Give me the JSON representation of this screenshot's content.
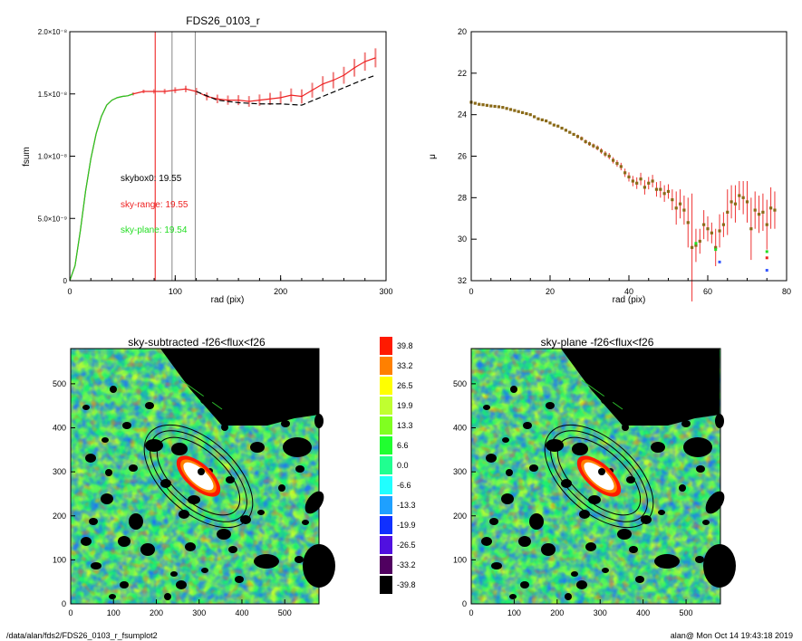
{
  "chart_data": [
    {
      "type": "line",
      "title": "FDS26_0103_r",
      "xlabel": "rad (pix)",
      "ylabel": "fsum",
      "xlim": [
        0,
        300
      ],
      "ylim": [
        0,
        2e-08
      ],
      "x_ticks": [
        "0",
        "100",
        "200",
        "300"
      ],
      "y_ticks": [
        "0",
        "5.0×10⁻⁹",
        "1.0×10⁻⁸",
        "1.5×10⁻⁸",
        "2.0×10⁻⁸"
      ],
      "vertical_lines": [
        {
          "x": 81,
          "color": "#ee1111"
        },
        {
          "x": 97,
          "color": "#888888"
        },
        {
          "x": 119,
          "color": "#888888"
        }
      ],
      "annotations": [
        {
          "text": "skybox0: 19.55",
          "color": "#000000"
        },
        {
          "text": "sky-range: 19.55",
          "color": "#ee2222"
        },
        {
          "text": "sky-plane: 19.54",
          "color": "#22dd22"
        }
      ],
      "series": [
        {
          "color": "#ee2222",
          "style": "solid",
          "x": [
            0,
            5,
            10,
            15,
            20,
            25,
            30,
            35,
            40,
            45,
            50,
            55,
            60,
            70,
            80,
            90,
            100,
            110,
            120,
            130,
            140,
            150,
            160,
            170,
            180,
            190,
            200,
            210,
            220,
            230,
            240,
            250,
            260,
            270,
            280,
            290
          ],
          "y": [
            0,
            1.2e-09,
            4e-09,
            7.2e-09,
            9.8e-09,
            1.18e-08,
            1.32e-08,
            1.41e-08,
            1.45e-08,
            1.47e-08,
            1.48e-08,
            1.485e-08,
            1.5e-08,
            1.52e-08,
            1.52e-08,
            1.52e-08,
            1.53e-08,
            1.54e-08,
            1.52e-08,
            1.48e-08,
            1.46e-08,
            1.45e-08,
            1.45e-08,
            1.44e-08,
            1.45e-08,
            1.46e-08,
            1.47e-08,
            1.49e-08,
            1.48e-08,
            1.53e-08,
            1.58e-08,
            1.61e-08,
            1.65e-08,
            1.71e-08,
            1.76e-08,
            1.79e-08
          ]
        },
        {
          "color": "#000000",
          "style": "dashed",
          "x": [
            120,
            140,
            160,
            180,
            200,
            220,
            240,
            260,
            280,
            290
          ],
          "y": [
            1.52e-08,
            1.45e-08,
            1.43e-08,
            1.42e-08,
            1.42e-08,
            1.41e-08,
            1.48e-08,
            1.55e-08,
            1.62e-08,
            1.65e-08
          ]
        },
        {
          "color": "#22cc22",
          "style": "solid",
          "x": [
            0,
            5,
            10,
            15,
            20,
            25,
            30,
            35,
            40,
            45,
            50,
            55,
            60
          ],
          "y": [
            0,
            1.2e-09,
            4e-09,
            7.2e-09,
            9.8e-09,
            1.18e-08,
            1.32e-08,
            1.41e-08,
            1.45e-08,
            1.47e-08,
            1.48e-08,
            1.485e-08,
            1.5e-08
          ]
        }
      ]
    },
    {
      "type": "scatter",
      "xlabel": "rad (pix)",
      "ylabel": "μ",
      "xlim": [
        0,
        80
      ],
      "ylim": [
        32,
        20
      ],
      "x_ticks": [
        "0",
        "20",
        "40",
        "60",
        "80"
      ],
      "y_ticks": [
        "20",
        "22",
        "24",
        "26",
        "28",
        "30",
        "32"
      ],
      "x": [
        0,
        1,
        2,
        3,
        4,
        5,
        6,
        7,
        8,
        9,
        10,
        11,
        12,
        13,
        14,
        15,
        16,
        17,
        18,
        19,
        20,
        21,
        22,
        23,
        24,
        25,
        26,
        27,
        28,
        29,
        30,
        31,
        32,
        33,
        34,
        35,
        36,
        37,
        38,
        39,
        40,
        41,
        42,
        43,
        44,
        45,
        46,
        47,
        48,
        49,
        50,
        51,
        52,
        53,
        54,
        55,
        56,
        57,
        58,
        59,
        60,
        61,
        62,
        63,
        64,
        65,
        66,
        67,
        68,
        69,
        70,
        71,
        72,
        73,
        74,
        75,
        76,
        77
      ],
      "y": [
        23.4,
        23.45,
        23.5,
        23.52,
        23.55,
        23.58,
        23.6,
        23.62,
        23.65,
        23.7,
        23.75,
        23.8,
        23.85,
        23.9,
        23.95,
        24.0,
        24.1,
        24.2,
        24.25,
        24.3,
        24.4,
        24.5,
        24.55,
        24.65,
        24.75,
        24.85,
        24.95,
        25.05,
        25.15,
        25.3,
        25.4,
        25.5,
        25.6,
        25.75,
        25.9,
        26.0,
        26.2,
        26.35,
        26.5,
        26.8,
        27.0,
        27.2,
        27.3,
        27.1,
        27.5,
        27.3,
        27.2,
        27.6,
        27.6,
        27.8,
        27.7,
        28.1,
        28.5,
        28.3,
        28.6,
        29.2,
        30.4,
        30.3,
        30.1,
        29.3,
        29.5,
        29.7,
        30.4,
        29.6,
        29.3,
        28.7,
        28.2,
        28.3,
        27.9,
        28.0,
        28.2,
        29.5,
        28.6,
        28.8,
        28.7,
        29.3,
        28.5,
        28.6
      ],
      "err": [
        0.03,
        0.03,
        0.03,
        0.03,
        0.03,
        0.03,
        0.03,
        0.03,
        0.04,
        0.04,
        0.04,
        0.04,
        0.04,
        0.05,
        0.05,
        0.05,
        0.05,
        0.05,
        0.06,
        0.06,
        0.06,
        0.07,
        0.07,
        0.07,
        0.08,
        0.08,
        0.08,
        0.09,
        0.1,
        0.1,
        0.1,
        0.11,
        0.12,
        0.13,
        0.14,
        0.15,
        0.15,
        0.16,
        0.18,
        0.2,
        0.22,
        0.25,
        0.28,
        0.3,
        0.35,
        0.3,
        0.3,
        0.35,
        0.4,
        0.4,
        0.35,
        0.5,
        0.8,
        0.7,
        0.7,
        1.2,
        2.6,
        0.8,
        0.6,
        0.7,
        0.6,
        0.5,
        0.9,
        0.8,
        0.6,
        1.1,
        0.8,
        0.9,
        0.7,
        0.8,
        1.0,
        1.5,
        0.9,
        0.9,
        0.9,
        1.2,
        1.0,
        0.9
      ],
      "extra_points": [
        {
          "x": 57,
          "y": 30.2,
          "color": "#22dd22"
        },
        {
          "x": 62,
          "y": 30.5,
          "color": "#22dd22"
        },
        {
          "x": 63,
          "y": 31.1,
          "color": "#3355ff"
        },
        {
          "x": 75,
          "y": 30.6,
          "color": "#22dd22"
        },
        {
          "x": 75,
          "y": 31.5,
          "color": "#3355ff"
        },
        {
          "x": 75,
          "y": 30.9,
          "color": "#ee2222"
        }
      ]
    },
    {
      "type": "heatmap",
      "title": "sky-subtracted -f26<flux<f26",
      "xlim": [
        0,
        580
      ],
      "ylim": [
        0,
        580
      ],
      "x_ticks": [
        "0",
        "100",
        "200",
        "300",
        "400",
        "500"
      ],
      "y_ticks": [
        "0",
        "100",
        "200",
        "300",
        "400",
        "500"
      ]
    },
    {
      "type": "heatmap",
      "title": "sky-plane -f26<flux<f26",
      "xlim": [
        0,
        580
      ],
      "ylim": [
        0,
        580
      ],
      "x_ticks": [
        "0",
        "100",
        "200",
        "300",
        "400",
        "500"
      ],
      "y_ticks": [
        "0",
        "100",
        "200",
        "300",
        "400",
        "500"
      ]
    }
  ],
  "colorbar": {
    "labels": [
      "39.8",
      "33.2",
      "26.5",
      "19.9",
      "13.3",
      "6.6",
      "0.0",
      "-6.6",
      "-13.3",
      "-19.9",
      "-26.5",
      "-33.2",
      "-39.8"
    ],
    "colors": [
      "#ff1a00",
      "#ff8000",
      "#ffff00",
      "#c0ff30",
      "#80ff20",
      "#20ff30",
      "#20ff90",
      "#20ffff",
      "#1ea0ff",
      "#1030ff",
      "#5010e0",
      "#500060",
      "#000000"
    ]
  },
  "footer": {
    "left": "/data/alan/fds2/FDS26_0103_r_fsumplot2",
    "right": "alan@  Mon Oct 14 19:43:18 2019"
  }
}
